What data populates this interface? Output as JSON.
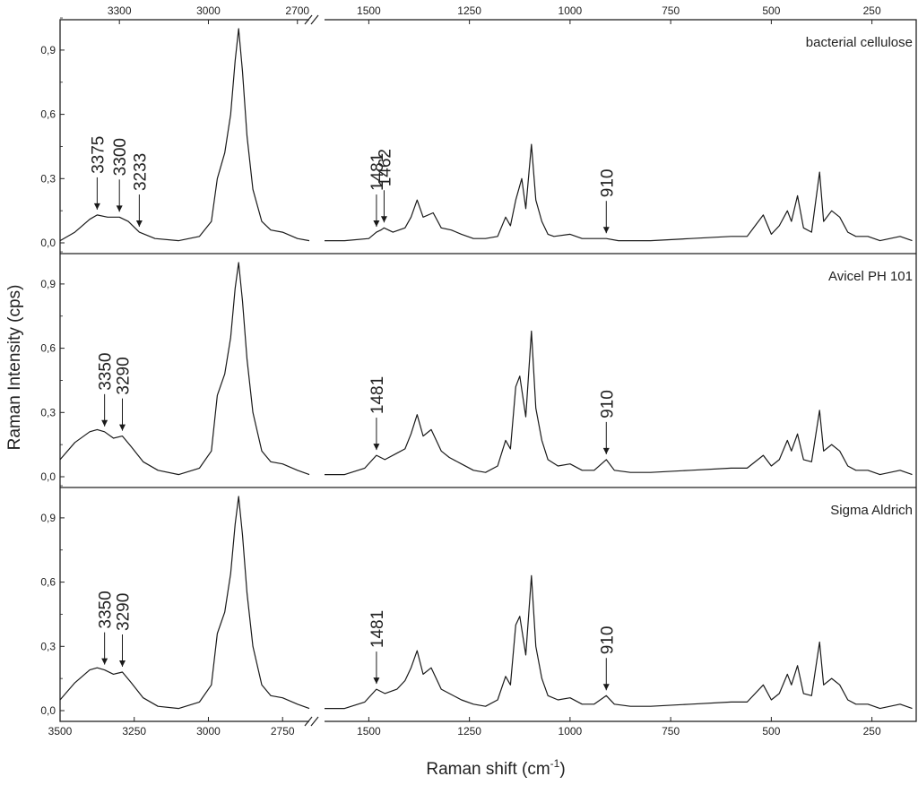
{
  "chart_data": {
    "type": "line",
    "xlabel": "Raman shift (cm",
    "xlabel_sup": "-1",
    "xlabel_close": ")",
    "ylabel": "Raman Intensity (cps)",
    "ylim": [
      0,
      1.0
    ],
    "y_ticks": [
      "0,0",
      "0,3",
      "0,6",
      "0,9"
    ],
    "y_tick_values": [
      0,
      0.3,
      0.6,
      0.9
    ],
    "x_axis": {
      "broken": true,
      "segment_high": {
        "range": [
          3500,
          2660
        ],
        "tick_values": [
          3500,
          3250,
          3000,
          2750
        ],
        "tick_labels": [
          "3500",
          "3250",
          "3000",
          "2750"
        ],
        "top_tick_values": [
          3300,
          3000,
          2700
        ],
        "top_tick_labels": [
          "3300",
          "3000",
          "2700"
        ]
      },
      "segment_low": {
        "range": [
          1610,
          140
        ],
        "tick_values": [
          1500,
          1250,
          1000,
          750,
          500,
          250
        ],
        "tick_labels": [
          "1500",
          "1250",
          "1000",
          "750",
          "500",
          "250"
        ],
        "top_tick_labels": [
          "1500",
          "1250",
          "1000",
          "750",
          "500",
          "250"
        ]
      }
    },
    "series": [
      {
        "name": "bacterial  cellulose",
        "high_points": [
          [
            3500,
            0.01
          ],
          [
            3450,
            0.05
          ],
          [
            3400,
            0.11
          ],
          [
            3375,
            0.13
          ],
          [
            3340,
            0.12
          ],
          [
            3300,
            0.12
          ],
          [
            3270,
            0.1
          ],
          [
            3233,
            0.05
          ],
          [
            3180,
            0.02
          ],
          [
            3100,
            0.01
          ],
          [
            3030,
            0.03
          ],
          [
            2990,
            0.1
          ],
          [
            2970,
            0.3
          ],
          [
            2945,
            0.42
          ],
          [
            2925,
            0.6
          ],
          [
            2910,
            0.85
          ],
          [
            2898,
            1.0
          ],
          [
            2885,
            0.8
          ],
          [
            2870,
            0.5
          ],
          [
            2850,
            0.25
          ],
          [
            2820,
            0.1
          ],
          [
            2790,
            0.06
          ],
          [
            2750,
            0.05
          ],
          [
            2700,
            0.02
          ],
          [
            2660,
            0.01
          ]
        ],
        "low_points": [
          [
            1610,
            0.01
          ],
          [
            1560,
            0.01
          ],
          [
            1500,
            0.02
          ],
          [
            1481,
            0.05
          ],
          [
            1470,
            0.06
          ],
          [
            1462,
            0.07
          ],
          [
            1440,
            0.05
          ],
          [
            1410,
            0.07
          ],
          [
            1395,
            0.12
          ],
          [
            1380,
            0.2
          ],
          [
            1365,
            0.12
          ],
          [
            1340,
            0.14
          ],
          [
            1320,
            0.07
          ],
          [
            1295,
            0.06
          ],
          [
            1270,
            0.04
          ],
          [
            1240,
            0.02
          ],
          [
            1210,
            0.02
          ],
          [
            1180,
            0.03
          ],
          [
            1160,
            0.12
          ],
          [
            1148,
            0.08
          ],
          [
            1135,
            0.2
          ],
          [
            1120,
            0.3
          ],
          [
            1110,
            0.16
          ],
          [
            1096,
            0.46
          ],
          [
            1085,
            0.2
          ],
          [
            1070,
            0.1
          ],
          [
            1055,
            0.04
          ],
          [
            1040,
            0.03
          ],
          [
            1000,
            0.04
          ],
          [
            970,
            0.02
          ],
          [
            940,
            0.02
          ],
          [
            910,
            0.02
          ],
          [
            880,
            0.01
          ],
          [
            800,
            0.01
          ],
          [
            700,
            0.02
          ],
          [
            600,
            0.03
          ],
          [
            560,
            0.03
          ],
          [
            520,
            0.13
          ],
          [
            500,
            0.04
          ],
          [
            480,
            0.08
          ],
          [
            460,
            0.15
          ],
          [
            450,
            0.1
          ],
          [
            435,
            0.22
          ],
          [
            420,
            0.07
          ],
          [
            400,
            0.05
          ],
          [
            380,
            0.33
          ],
          [
            370,
            0.1
          ],
          [
            350,
            0.15
          ],
          [
            330,
            0.12
          ],
          [
            310,
            0.05
          ],
          [
            290,
            0.03
          ],
          [
            260,
            0.03
          ],
          [
            230,
            0.01
          ],
          [
            180,
            0.03
          ],
          [
            150,
            0.01
          ]
        ],
        "annotations": [
          {
            "label": "3375",
            "x": 3375,
            "segment": "high"
          },
          {
            "label": "3300",
            "x": 3300,
            "segment": "high"
          },
          {
            "label": "3233",
            "x": 3233,
            "segment": "high"
          },
          {
            "label": "1481",
            "x": 1481,
            "segment": "low"
          },
          {
            "label": "1462",
            "x": 1462,
            "segment": "low"
          },
          {
            "label": "910",
            "x": 910,
            "segment": "low"
          }
        ]
      },
      {
        "name": "Avicel  PH 101",
        "high_points": [
          [
            3500,
            0.08
          ],
          [
            3450,
            0.16
          ],
          [
            3400,
            0.21
          ],
          [
            3375,
            0.22
          ],
          [
            3350,
            0.21
          ],
          [
            3320,
            0.18
          ],
          [
            3290,
            0.19
          ],
          [
            3260,
            0.14
          ],
          [
            3220,
            0.07
          ],
          [
            3170,
            0.03
          ],
          [
            3100,
            0.01
          ],
          [
            3030,
            0.04
          ],
          [
            2990,
            0.12
          ],
          [
            2970,
            0.38
          ],
          [
            2945,
            0.48
          ],
          [
            2925,
            0.65
          ],
          [
            2910,
            0.88
          ],
          [
            2898,
            1.0
          ],
          [
            2885,
            0.82
          ],
          [
            2870,
            0.55
          ],
          [
            2850,
            0.3
          ],
          [
            2820,
            0.12
          ],
          [
            2790,
            0.07
          ],
          [
            2750,
            0.06
          ],
          [
            2700,
            0.03
          ],
          [
            2660,
            0.01
          ]
        ],
        "low_points": [
          [
            1610,
            0.01
          ],
          [
            1560,
            0.01
          ],
          [
            1510,
            0.04
          ],
          [
            1481,
            0.1
          ],
          [
            1460,
            0.08
          ],
          [
            1430,
            0.11
          ],
          [
            1410,
            0.13
          ],
          [
            1395,
            0.2
          ],
          [
            1380,
            0.29
          ],
          [
            1365,
            0.19
          ],
          [
            1345,
            0.22
          ],
          [
            1320,
            0.12
          ],
          [
            1300,
            0.09
          ],
          [
            1270,
            0.06
          ],
          [
            1240,
            0.03
          ],
          [
            1210,
            0.02
          ],
          [
            1180,
            0.05
          ],
          [
            1160,
            0.17
          ],
          [
            1148,
            0.13
          ],
          [
            1135,
            0.42
          ],
          [
            1125,
            0.47
          ],
          [
            1110,
            0.28
          ],
          [
            1096,
            0.68
          ],
          [
            1085,
            0.32
          ],
          [
            1070,
            0.17
          ],
          [
            1055,
            0.08
          ],
          [
            1030,
            0.05
          ],
          [
            1000,
            0.06
          ],
          [
            970,
            0.03
          ],
          [
            940,
            0.03
          ],
          [
            910,
            0.08
          ],
          [
            890,
            0.03
          ],
          [
            850,
            0.02
          ],
          [
            800,
            0.02
          ],
          [
            700,
            0.03
          ],
          [
            600,
            0.04
          ],
          [
            560,
            0.04
          ],
          [
            520,
            0.1
          ],
          [
            500,
            0.05
          ],
          [
            480,
            0.08
          ],
          [
            460,
            0.17
          ],
          [
            450,
            0.12
          ],
          [
            435,
            0.2
          ],
          [
            420,
            0.08
          ],
          [
            400,
            0.07
          ],
          [
            380,
            0.31
          ],
          [
            370,
            0.12
          ],
          [
            350,
            0.15
          ],
          [
            330,
            0.12
          ],
          [
            310,
            0.05
          ],
          [
            290,
            0.03
          ],
          [
            260,
            0.03
          ],
          [
            230,
            0.01
          ],
          [
            180,
            0.03
          ],
          [
            150,
            0.01
          ]
        ],
        "annotations": [
          {
            "label": "3350",
            "x": 3350,
            "segment": "high"
          },
          {
            "label": "3290",
            "x": 3290,
            "segment": "high"
          },
          {
            "label": "1481",
            "x": 1481,
            "segment": "low"
          },
          {
            "label": "910",
            "x": 910,
            "segment": "low"
          }
        ]
      },
      {
        "name": "Sigma Aldrich",
        "high_points": [
          [
            3500,
            0.05
          ],
          [
            3450,
            0.13
          ],
          [
            3400,
            0.19
          ],
          [
            3375,
            0.2
          ],
          [
            3350,
            0.19
          ],
          [
            3320,
            0.17
          ],
          [
            3290,
            0.18
          ],
          [
            3260,
            0.13
          ],
          [
            3220,
            0.06
          ],
          [
            3170,
            0.02
          ],
          [
            3100,
            0.01
          ],
          [
            3030,
            0.04
          ],
          [
            2990,
            0.12
          ],
          [
            2970,
            0.36
          ],
          [
            2945,
            0.46
          ],
          [
            2925,
            0.64
          ],
          [
            2910,
            0.87
          ],
          [
            2898,
            1.0
          ],
          [
            2885,
            0.82
          ],
          [
            2870,
            0.55
          ],
          [
            2850,
            0.3
          ],
          [
            2820,
            0.12
          ],
          [
            2790,
            0.07
          ],
          [
            2750,
            0.06
          ],
          [
            2700,
            0.03
          ],
          [
            2660,
            0.01
          ]
        ],
        "low_points": [
          [
            1610,
            0.01
          ],
          [
            1560,
            0.01
          ],
          [
            1510,
            0.04
          ],
          [
            1481,
            0.1
          ],
          [
            1460,
            0.08
          ],
          [
            1430,
            0.1
          ],
          [
            1410,
            0.14
          ],
          [
            1395,
            0.2
          ],
          [
            1380,
            0.28
          ],
          [
            1365,
            0.17
          ],
          [
            1345,
            0.2
          ],
          [
            1320,
            0.1
          ],
          [
            1300,
            0.08
          ],
          [
            1270,
            0.05
          ],
          [
            1240,
            0.03
          ],
          [
            1210,
            0.02
          ],
          [
            1180,
            0.05
          ],
          [
            1160,
            0.16
          ],
          [
            1148,
            0.12
          ],
          [
            1135,
            0.4
          ],
          [
            1125,
            0.44
          ],
          [
            1110,
            0.26
          ],
          [
            1096,
            0.63
          ],
          [
            1085,
            0.3
          ],
          [
            1070,
            0.15
          ],
          [
            1055,
            0.07
          ],
          [
            1030,
            0.05
          ],
          [
            1000,
            0.06
          ],
          [
            970,
            0.03
          ],
          [
            940,
            0.03
          ],
          [
            910,
            0.07
          ],
          [
            890,
            0.03
          ],
          [
            850,
            0.02
          ],
          [
            800,
            0.02
          ],
          [
            700,
            0.03
          ],
          [
            600,
            0.04
          ],
          [
            560,
            0.04
          ],
          [
            520,
            0.12
          ],
          [
            500,
            0.05
          ],
          [
            480,
            0.08
          ],
          [
            460,
            0.17
          ],
          [
            450,
            0.12
          ],
          [
            435,
            0.21
          ],
          [
            420,
            0.08
          ],
          [
            400,
            0.07
          ],
          [
            380,
            0.32
          ],
          [
            370,
            0.12
          ],
          [
            350,
            0.15
          ],
          [
            330,
            0.12
          ],
          [
            310,
            0.05
          ],
          [
            290,
            0.03
          ],
          [
            260,
            0.03
          ],
          [
            230,
            0.01
          ],
          [
            180,
            0.03
          ],
          [
            150,
            0.01
          ]
        ],
        "annotations": [
          {
            "label": "3350",
            "x": 3350,
            "segment": "high"
          },
          {
            "label": "3290",
            "x": 3290,
            "segment": "high"
          },
          {
            "label": "1481",
            "x": 1481,
            "segment": "low"
          },
          {
            "label": "910",
            "x": 910,
            "segment": "low"
          }
        ]
      }
    ],
    "colors": {
      "line": "#1a1a1a",
      "axis": "#222222",
      "background": "#ffffff"
    }
  }
}
